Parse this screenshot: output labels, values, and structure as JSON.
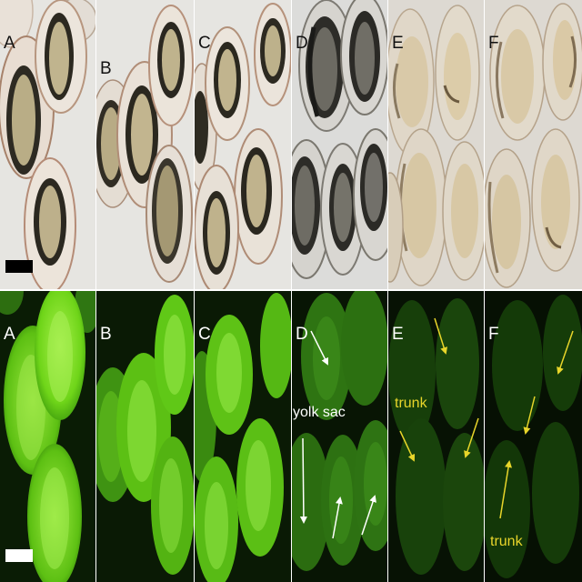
{
  "figure": {
    "top_row": {
      "panels": [
        {
          "label": "A"
        },
        {
          "label": "B"
        },
        {
          "label": "C"
        },
        {
          "label": "D"
        },
        {
          "label": "E"
        },
        {
          "label": "F"
        }
      ],
      "scale_bar_color": "#000000"
    },
    "bottom_row": {
      "panels": [
        {
          "label": "A"
        },
        {
          "label": "B"
        },
        {
          "label": "C"
        },
        {
          "label": "D"
        },
        {
          "label": "E"
        },
        {
          "label": "F"
        }
      ],
      "scale_bar_color": "#ffffff"
    },
    "annotations": {
      "yolk_sac": "yolk sac",
      "trunk_e": "trunk",
      "trunk_f": "trunk"
    },
    "colors": {
      "fluorescence_bright": "#7be21c",
      "fluorescence_dim": "#2f6a16",
      "fluorescence_background": "#0a1a05",
      "annotation_white": "#ffffff",
      "annotation_yellow": "#e8d52a",
      "brightfield_background": "#e7e6e2"
    }
  }
}
